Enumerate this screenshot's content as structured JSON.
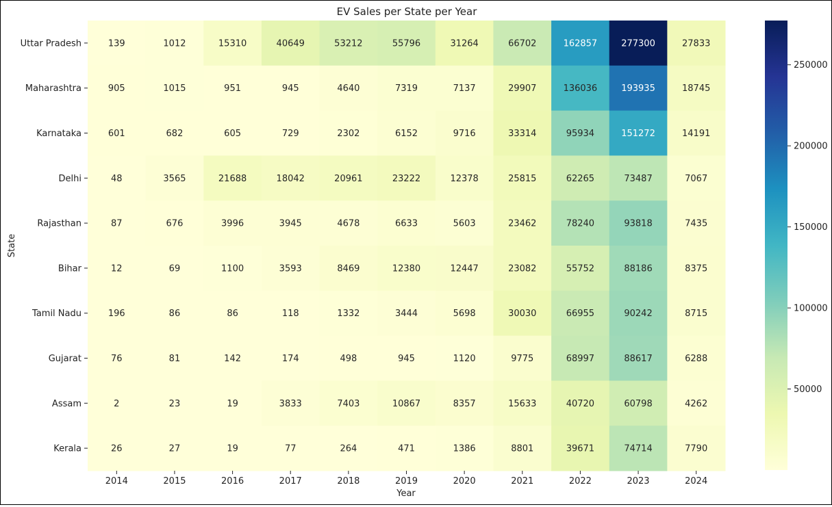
{
  "chart_data": {
    "type": "heatmap",
    "title": "EV Sales per State per Year",
    "xlabel": "Year",
    "ylabel": "State",
    "colormap": "YlGnBu",
    "colors": [
      "#ffffd9",
      "#edf8b1",
      "#c7e9b4",
      "#7fcdbb",
      "#41b6c4",
      "#1d91c0",
      "#225ea8",
      "#253494",
      "#081d58"
    ],
    "vmin": 2,
    "vmax": 277300,
    "x": [
      "2014",
      "2015",
      "2016",
      "2017",
      "2018",
      "2019",
      "2020",
      "2021",
      "2022",
      "2023",
      "2024"
    ],
    "y": [
      "Uttar Pradesh",
      "Maharashtra",
      "Karnataka",
      "Delhi",
      "Rajasthan",
      "Bihar",
      "Tamil Nadu",
      "Gujarat",
      "Assam",
      "Kerala"
    ],
    "values": [
      [
        139,
        1012,
        15310,
        40649,
        53212,
        55796,
        31264,
        66702,
        162857,
        277300,
        27833
      ],
      [
        905,
        1015,
        951,
        945,
        4640,
        7319,
        7137,
        29907,
        136036,
        193935,
        18745
      ],
      [
        601,
        682,
        605,
        729,
        2302,
        6152,
        9716,
        33314,
        95934,
        151272,
        14191
      ],
      [
        48,
        3565,
        21688,
        18042,
        20961,
        23222,
        12378,
        25815,
        62265,
        73487,
        7067
      ],
      [
        87,
        676,
        3996,
        3945,
        4678,
        6633,
        5603,
        23462,
        78240,
        93818,
        7435
      ],
      [
        12,
        69,
        1100,
        3593,
        8469,
        12380,
        12447,
        23082,
        55752,
        88186,
        8375
      ],
      [
        196,
        86,
        86,
        118,
        1332,
        3444,
        5698,
        30030,
        66955,
        90242,
        8715
      ],
      [
        76,
        81,
        142,
        174,
        498,
        945,
        1120,
        9775,
        68997,
        88617,
        6288
      ],
      [
        2,
        23,
        19,
        3833,
        7403,
        10867,
        8357,
        15633,
        40720,
        60798,
        4262
      ],
      [
        26,
        27,
        19,
        77,
        264,
        471,
        1386,
        8801,
        39671,
        74714,
        7790
      ]
    ],
    "colorbar_ticks": [
      50000,
      100000,
      150000,
      200000,
      250000
    ]
  }
}
